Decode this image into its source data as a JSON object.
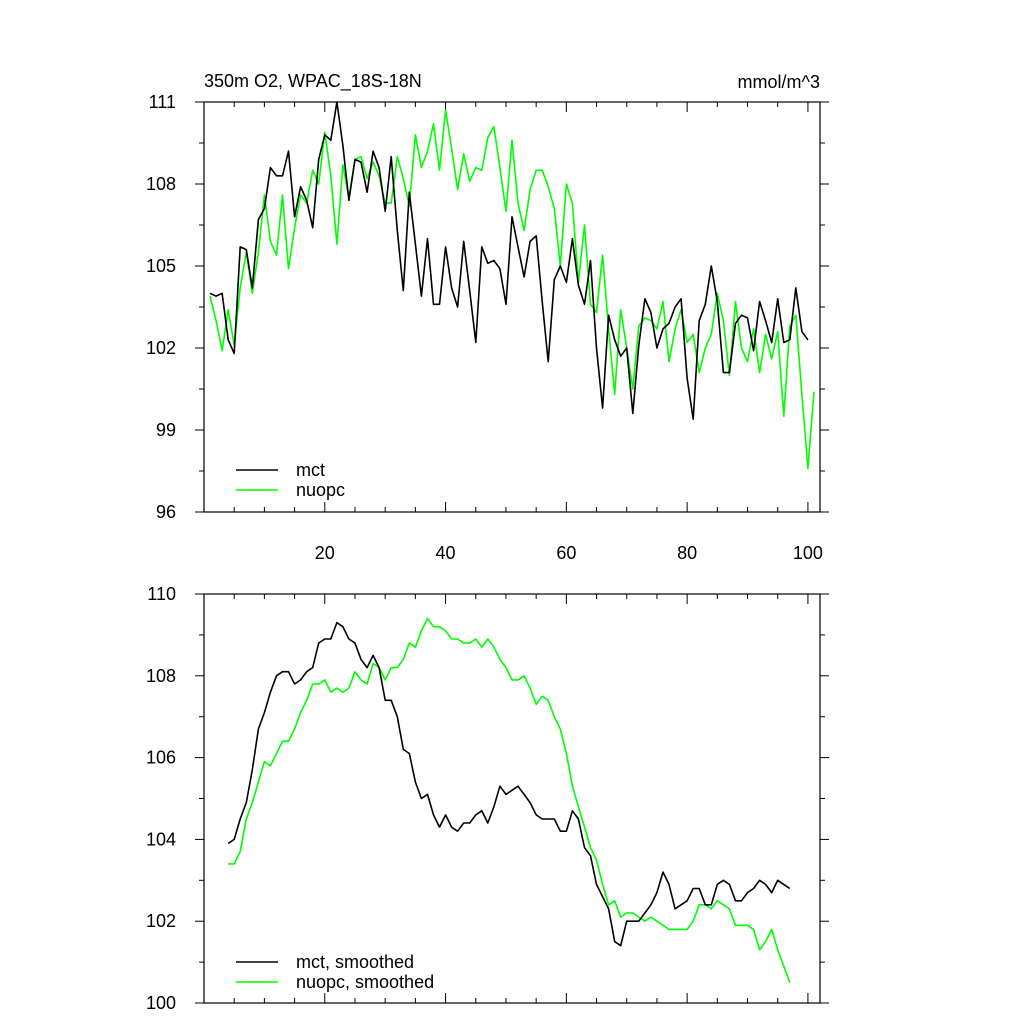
{
  "chart_data": [
    {
      "type": "line",
      "title": "350m O2, WPAC_18S-18N",
      "units": "mmol/m^3",
      "xlim": [
        0,
        102
      ],
      "ylim": [
        96,
        111
      ],
      "x_ticks": [
        20,
        40,
        60,
        80,
        100
      ],
      "y_ticks": [
        96,
        99,
        102,
        105,
        108,
        111
      ],
      "legend_position": "bottom-left",
      "series": [
        {
          "name": "mct",
          "color": "#000000",
          "values": [
            104.0,
            103.9,
            104.0,
            102.3,
            101.8,
            105.7,
            105.6,
            104.2,
            106.7,
            107.1,
            108.6,
            108.3,
            108.3,
            109.2,
            106.8,
            107.9,
            107.4,
            106.4,
            108.9,
            109.8,
            109.6,
            111.0,
            109.4,
            107.4,
            108.9,
            108.8,
            107.7,
            109.2,
            108.6,
            107.0,
            109.0,
            106.3,
            104.1,
            107.7,
            105.8,
            103.9,
            106.0,
            103.6,
            103.6,
            105.7,
            104.2,
            103.5,
            105.9,
            104.1,
            102.2,
            105.7,
            105.1,
            105.2,
            104.9,
            103.6,
            106.8,
            105.7,
            104.6,
            105.9,
            106.1,
            103.7,
            101.5,
            104.5,
            105.0,
            104.4,
            106.0,
            104.3,
            103.6,
            105.2,
            102.0,
            99.8,
            103.2,
            102.3,
            101.7,
            102.0,
            99.6,
            102.1,
            103.8,
            103.3,
            102.0,
            102.7,
            102.9,
            103.5,
            103.8,
            100.9,
            99.4,
            103.0,
            103.6,
            105.0,
            103.7,
            101.1,
            101.1,
            102.9,
            103.2,
            103.1,
            101.9,
            103.7,
            103.0,
            102.2,
            103.8,
            102.2,
            102.3,
            104.2,
            102.6,
            102.3
          ]
        },
        {
          "name": "nuopc",
          "color": "#00ff00",
          "values": [
            103.9,
            103.0,
            101.9,
            103.4,
            102.1,
            104.2,
            105.5,
            104.0,
            105.5,
            107.6,
            105.9,
            105.4,
            107.6,
            104.9,
            106.4,
            107.6,
            107.3,
            108.5,
            108.0,
            109.9,
            108.3,
            105.8,
            108.7,
            107.5,
            108.9,
            109.0,
            108.2,
            108.8,
            108.3,
            107.3,
            107.3,
            109.0,
            108.2,
            107.2,
            109.8,
            108.6,
            109.2,
            110.2,
            108.5,
            110.7,
            109.3,
            107.8,
            109.1,
            108.1,
            108.6,
            108.5,
            109.7,
            110.1,
            108.6,
            107.0,
            109.6,
            107.3,
            106.3,
            107.8,
            108.5,
            108.5,
            107.9,
            107.1,
            105.0,
            108.0,
            107.3,
            104.4,
            106.5,
            103.6,
            103.3,
            105.4,
            102.7,
            100.3,
            103.4,
            102.0,
            100.5,
            102.8,
            103.1,
            103.0,
            102.7,
            103.7,
            101.5,
            102.7,
            103.4,
            102.2,
            102.5,
            101.1,
            102.0,
            102.5,
            104.0,
            103.0,
            101.0,
            103.7,
            102.0,
            101.5,
            102.7,
            101.1,
            102.5,
            101.6,
            102.6,
            99.5,
            102.8,
            103.2,
            100.3,
            97.6,
            100.4
          ]
        }
      ]
    },
    {
      "type": "line",
      "title": "",
      "xlim": [
        0,
        102
      ],
      "ylim": [
        100,
        110
      ],
      "x_ticks": [
        20,
        40,
        60,
        80,
        100
      ],
      "y_ticks": [
        100,
        102,
        104,
        106,
        108,
        110
      ],
      "legend_position": "bottom-left",
      "x_start": 4,
      "series": [
        {
          "name": "mct, smoothed",
          "color": "#000000",
          "values": [
            103.9,
            104.0,
            104.5,
            104.9,
            105.7,
            106.7,
            107.1,
            107.6,
            108.0,
            108.1,
            108.1,
            107.8,
            107.9,
            108.1,
            108.2,
            108.8,
            108.9,
            108.9,
            109.3,
            109.2,
            108.9,
            108.8,
            108.4,
            108.2,
            108.5,
            108.2,
            107.4,
            107.4,
            107.0,
            106.2,
            106.1,
            105.4,
            105.0,
            105.1,
            104.6,
            104.3,
            104.6,
            104.3,
            104.2,
            104.4,
            104.4,
            104.6,
            104.7,
            104.4,
            104.8,
            105.3,
            105.1,
            105.2,
            105.3,
            105.1,
            104.9,
            104.6,
            104.5,
            104.5,
            104.5,
            104.2,
            104.2,
            104.7,
            104.5,
            103.8,
            103.6,
            102.9,
            102.6,
            102.3,
            101.5,
            101.4,
            102.0,
            102.0,
            102.0,
            102.2,
            102.4,
            102.7,
            103.2,
            102.9,
            102.3,
            102.4,
            102.5,
            102.8,
            102.8,
            102.4,
            102.4,
            102.9,
            103.0,
            102.9,
            102.5,
            102.5,
            102.7,
            102.8,
            103.0,
            102.9,
            102.7,
            103.0,
            102.9,
            102.8
          ]
        },
        {
          "name": "nuopc, smoothed",
          "color": "#00ff00",
          "values": [
            103.4,
            103.4,
            103.7,
            104.5,
            104.9,
            105.4,
            105.9,
            105.8,
            106.1,
            106.4,
            106.4,
            106.7,
            107.1,
            107.4,
            107.8,
            107.8,
            107.9,
            107.6,
            107.7,
            107.6,
            107.7,
            108.1,
            107.9,
            107.8,
            108.3,
            108.2,
            107.9,
            108.2,
            108.2,
            108.4,
            108.8,
            108.7,
            109.1,
            109.4,
            109.2,
            109.2,
            109.1,
            108.9,
            108.9,
            108.8,
            108.8,
            108.9,
            108.7,
            108.9,
            108.7,
            108.4,
            108.2,
            107.9,
            107.9,
            108.0,
            107.7,
            107.3,
            107.5,
            107.4,
            107.0,
            106.7,
            106.1,
            105.3,
            104.8,
            104.3,
            103.8,
            103.5,
            102.9,
            102.4,
            102.5,
            102.1,
            102.2,
            102.2,
            102.1,
            102.0,
            102.1,
            102.0,
            101.9,
            101.8,
            101.8,
            101.8,
            101.8,
            102.0,
            102.4,
            102.4,
            102.3,
            102.5,
            102.4,
            102.3,
            101.9,
            101.9,
            101.9,
            101.8,
            101.3,
            101.5,
            101.8,
            101.3,
            100.9,
            100.5
          ]
        }
      ]
    }
  ]
}
